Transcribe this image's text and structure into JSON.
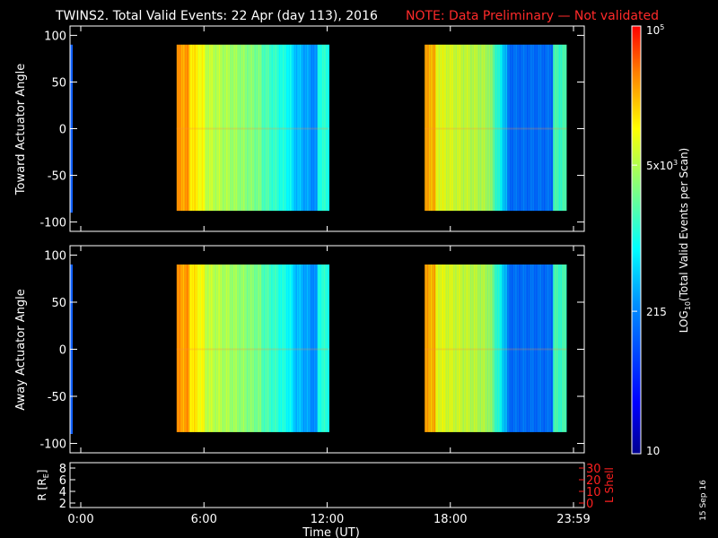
{
  "header": {
    "title": "TWINS2. Total Valid Events: 22 Apr (day 113), 2016",
    "note": "NOTE: Data Preliminary — Not validated",
    "note_color": "#ff2a2a"
  },
  "side_date": "15 Sep 16",
  "chart_data": [
    {
      "type": "heatmap",
      "panel": "toward",
      "ylabel": "Toward Actuator Angle",
      "ylim": [
        -110,
        110
      ],
      "yticks": [
        "100",
        "50",
        "0",
        "-50",
        "-100"
      ],
      "xlim": [
        0,
        24
      ],
      "data_y_range": [
        -88,
        90
      ],
      "data_blocks": [
        {
          "start": "4:40",
          "end": "12:05"
        },
        {
          "start": "16:45",
          "end": "23:40"
        }
      ]
    },
    {
      "type": "heatmap",
      "panel": "away",
      "ylabel": "Away Actuator Angle",
      "ylim": [
        -110,
        110
      ],
      "yticks": [
        "100",
        "50",
        "0",
        "-50",
        "-100"
      ],
      "xlim": [
        0,
        24
      ],
      "data_y_range": [
        -88,
        90
      ],
      "data_blocks": [
        {
          "start": "4:40",
          "end": "12:05"
        },
        {
          "start": "16:45",
          "end": "23:40"
        }
      ]
    },
    {
      "type": "line",
      "panel": "orbit",
      "ylabel_left": "R [R_E]",
      "ylabel_left_base": "R [R",
      "ylabel_left_sub": "E",
      "ylabel_left_close": "]",
      "yticks_left": [
        "8",
        "6",
        "4",
        "2"
      ],
      "ylabel_right": "L Shell",
      "yticks_right": [
        "30",
        "20",
        "10",
        "0"
      ],
      "right_color": "#ff2020",
      "xlabel": "Time (UT)",
      "xticks": [
        "0:00",
        "6:00",
        "12:00",
        "18:00",
        "23:59"
      ],
      "series": []
    }
  ],
  "colorbar": {
    "label": "LOG10(Total Valid Events per Scan)",
    "label_prefix": "LOG",
    "label_sub": "10",
    "label_suffix": "(Total Valid Events per Scan)",
    "ticks": [
      {
        "base": "10",
        "exp": "5",
        "value": 100000
      },
      {
        "base": "5x10",
        "exp": "3",
        "value": 5000
      },
      {
        "base": "215",
        "exp": "",
        "value": 215
      },
      {
        "base": "10",
        "exp": "",
        "value": 10
      }
    ],
    "scale": "log",
    "range": [
      10,
      100000
    ]
  }
}
